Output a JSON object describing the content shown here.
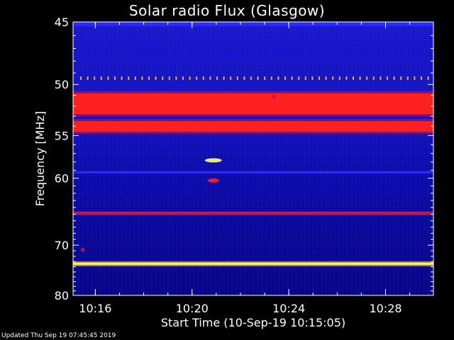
{
  "chart_data": {
    "type": "heatmap",
    "title": "Solar radio Flux (Glasgow)",
    "xlabel": "Start Time (10-Sep-19 10:15:05)",
    "ylabel": "Frequency [MHz]",
    "footer": "Updated Thu Sep 19 07:45:45 2019",
    "x_ticks": [
      "10:16",
      "10:20",
      "10:24",
      "10:28"
    ],
    "x_tick_minutes": [
      0.92,
      4.92,
      8.92,
      12.92
    ],
    "x_range_minutes": [
      0,
      14.9
    ],
    "y_ticks": [
      45,
      50,
      55,
      60,
      70,
      80
    ],
    "y_range": [
      45,
      80
    ],
    "y_scale": "reciprocal",
    "colors": {
      "background": "#000060",
      "low": "#0a0aa0",
      "mid": "#2a2aff",
      "high": "#ff2020",
      "peak": "#ffff80"
    },
    "bands": [
      {
        "f0": 45.0,
        "f1": 45.3,
        "level": "mid"
      },
      {
        "f0": 49.3,
        "f1": 49.6,
        "level": "dash"
      },
      {
        "f0": 50.8,
        "f1": 52.8,
        "level": "high"
      },
      {
        "f0": 53.5,
        "f1": 54.6,
        "level": "high"
      },
      {
        "f0": 59.1,
        "f1": 59.4,
        "level": "mid"
      },
      {
        "f0": 64.6,
        "f1": 65.1,
        "level": "warm"
      },
      {
        "f0": 73.2,
        "f1": 73.6,
        "level": "peak"
      }
    ],
    "bursts": [
      {
        "t": 5.8,
        "f": 57.8,
        "level": "peak"
      },
      {
        "t": 5.8,
        "f": 60.3,
        "level": "high"
      },
      {
        "t": 8.3,
        "f": 51.1,
        "level": "warm"
      },
      {
        "t": 0.4,
        "f": 70.8,
        "level": "warm"
      }
    ]
  }
}
